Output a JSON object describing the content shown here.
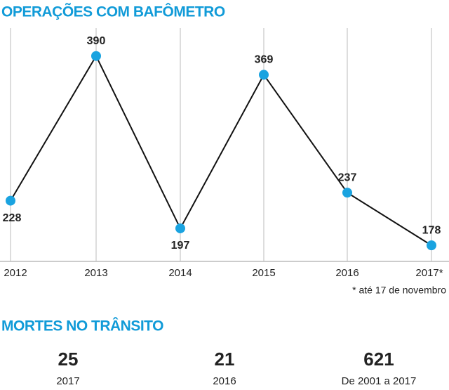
{
  "chart_data": {
    "type": "line",
    "title": "OPERAÇÕES COM BAFÔMETRO",
    "categories": [
      "2012",
      "2013",
      "2014",
      "2015",
      "2016",
      "2017*"
    ],
    "values": [
      228,
      390,
      197,
      369,
      237,
      178
    ],
    "color": "#1aa3e0",
    "line_color": "#111111",
    "ylim": [
      160,
      400
    ],
    "grid": true,
    "note": "* até 17 de novembro"
  },
  "stats_section": {
    "title": "MORTES NO TRÂNSITO",
    "items": [
      {
        "value": "25",
        "label": "2017"
      },
      {
        "value": "21",
        "label": "2016"
      },
      {
        "value": "621",
        "label": "De 2001 a 2017"
      }
    ]
  }
}
